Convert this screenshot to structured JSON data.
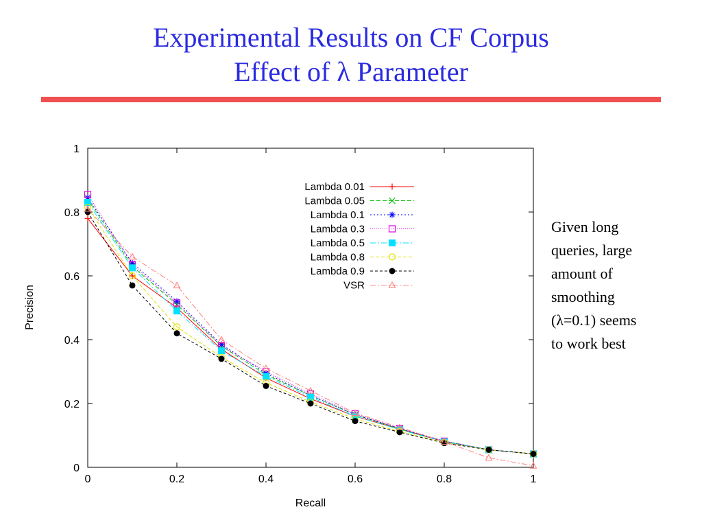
{
  "slide": {
    "title_line1": "Experimental Results on CF Corpus",
    "title_line2": "Effect of λ Parameter",
    "accent_color": "#2a2ae0",
    "rule_color": "#f05050"
  },
  "note": {
    "lines": [
      "Given long",
      "queries, large",
      "amount of",
      "smoothing",
      "(λ=0.1) seems",
      "to work best"
    ]
  },
  "chart_data": {
    "type": "line",
    "title": "",
    "xlabel": "Recall",
    "ylabel": "Precision",
    "xlim": [
      0,
      1
    ],
    "ylim": [
      0,
      1
    ],
    "xticks": [
      "0",
      "0.2",
      "0.4",
      "0.6",
      "0.8",
      "1"
    ],
    "yticks": [
      "0",
      "0.2",
      "0.4",
      "0.6",
      "0.8",
      "1"
    ],
    "legend_position": "top-right",
    "grid": false,
    "x": [
      0,
      0.1,
      0.2,
      0.3,
      0.4,
      0.5,
      0.6,
      0.7,
      0.8,
      0.9,
      1.0
    ],
    "series": [
      {
        "name": "Lambda 0.01",
        "color": "#ff0000",
        "marker": "plus",
        "dash": "none",
        "values": [
          0.78,
          0.6,
          0.5,
          0.37,
          0.28,
          0.215,
          0.16,
          0.12,
          0.08,
          0.055,
          0.042
        ]
      },
      {
        "name": "Lambda 0.05",
        "color": "#00c000",
        "marker": "x",
        "dash": "6,3",
        "values": [
          0.84,
          0.63,
          0.51,
          0.38,
          0.29,
          0.225,
          0.165,
          0.12,
          0.082,
          0.055,
          0.042
        ]
      },
      {
        "name": "Lambda 0.1",
        "color": "#0000ff",
        "marker": "star",
        "dash": "2,3",
        "values": [
          0.845,
          0.64,
          0.52,
          0.385,
          0.295,
          0.225,
          0.165,
          0.122,
          0.082,
          0.055,
          0.042
        ]
      },
      {
        "name": "Lambda 0.3",
        "color": "#e000e0",
        "marker": "square-open",
        "dash": "1,2",
        "values": [
          0.855,
          0.635,
          0.515,
          0.38,
          0.3,
          0.23,
          0.168,
          0.122,
          0.082,
          0.055,
          0.042
        ]
      },
      {
        "name": "Lambda 0.5",
        "color": "#00e0ff",
        "marker": "square-filled",
        "dash": "8,3,2,3",
        "values": [
          0.83,
          0.625,
          0.49,
          0.365,
          0.285,
          0.22,
          0.16,
          0.118,
          0.08,
          0.055,
          0.042
        ]
      },
      {
        "name": "Lambda 0.8",
        "color": "#e0e000",
        "marker": "circle-open",
        "dash": "5,3",
        "values": [
          0.815,
          0.6,
          0.44,
          0.345,
          0.265,
          0.205,
          0.152,
          0.112,
          0.078,
          0.055,
          0.042
        ]
      },
      {
        "name": "Lambda 0.9",
        "color": "#000000",
        "marker": "circle-filled",
        "dash": "4,3",
        "values": [
          0.8,
          0.57,
          0.42,
          0.34,
          0.255,
          0.2,
          0.145,
          0.11,
          0.076,
          0.055,
          0.042
        ]
      },
      {
        "name": "VSR",
        "color": "#ff8080",
        "marker": "triangle-open",
        "dash": "8,3,2,3",
        "values": [
          0.81,
          0.66,
          0.57,
          0.4,
          0.31,
          0.24,
          0.17,
          0.125,
          0.08,
          0.03,
          0.005
        ]
      }
    ]
  }
}
